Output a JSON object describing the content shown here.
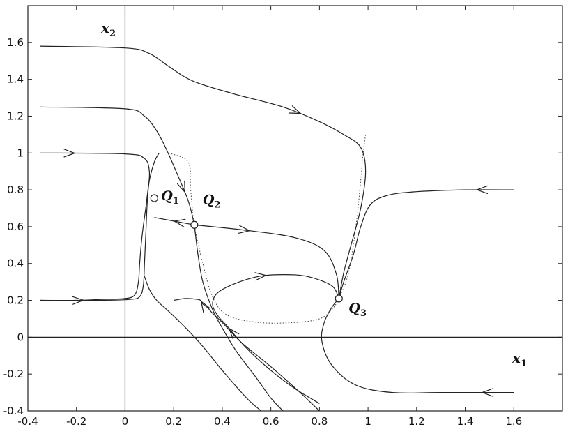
{
  "chart_data": {
    "type": "line",
    "title": "",
    "xlabel": "x1",
    "ylabel": "x2",
    "xlabel_parts": {
      "base": "x",
      "sub": "1"
    },
    "ylabel_parts": {
      "base": "x",
      "sub": "2"
    },
    "xlim": [
      -0.4,
      1.8
    ],
    "ylim": [
      -0.4,
      1.8
    ],
    "xticks": [
      -0.4,
      -0.2,
      0,
      0.2,
      0.4,
      0.6,
      0.8,
      1,
      1.2,
      1.4,
      1.6
    ],
    "yticks": [
      -0.4,
      -0.2,
      0,
      0.2,
      0.4,
      0.6,
      0.8,
      1,
      1.2,
      1.4,
      1.6
    ],
    "xtick_labels": [
      "-0.4",
      "-0.2",
      "0",
      "0.2",
      "0.4",
      "0.6",
      "0.8",
      "1",
      "1.2",
      "1.4",
      "1.6"
    ],
    "ytick_labels": [
      "-0.4",
      "-0.2",
      "0",
      "0.2",
      "0.4",
      "0.6",
      "0.8",
      "1",
      "1.2",
      "1.4",
      "1.6"
    ],
    "grid": false,
    "equilibria": [
      {
        "label": "Q",
        "sub": "1",
        "x": 0.12,
        "y": 0.755
      },
      {
        "label": "Q",
        "sub": "2",
        "x": 0.285,
        "y": 0.61
      },
      {
        "label": "Q",
        "sub": "3",
        "x": 0.88,
        "y": 0.21
      }
    ],
    "trajectories": [
      {
        "points": [
          [
            -0.35,
            1.58
          ],
          [
            0.0,
            1.57
          ],
          [
            0.1,
            1.54
          ],
          [
            0.18,
            1.47
          ],
          [
            0.28,
            1.39
          ],
          [
            0.45,
            1.32
          ],
          [
            0.65,
            1.25
          ],
          [
            0.8,
            1.17
          ],
          [
            0.9,
            1.1
          ],
          [
            0.97,
            1.03
          ],
          [
            0.99,
            0.9
          ],
          [
            0.97,
            0.7
          ],
          [
            0.93,
            0.5
          ],
          [
            0.9,
            0.35
          ],
          [
            0.88,
            0.21
          ]
        ],
        "arrows": [
          0.55
        ]
      },
      {
        "points": [
          [
            -0.35,
            1.25
          ],
          [
            0.0,
            1.24
          ],
          [
            0.08,
            1.2
          ],
          [
            0.13,
            1.12
          ],
          [
            0.17,
            1.02
          ],
          [
            0.21,
            0.9
          ],
          [
            0.26,
            0.74
          ],
          [
            0.285,
            0.61
          ]
        ],
        "arrows": [
          0.85
        ]
      },
      {
        "points": [
          [
            -0.35,
            1.0
          ],
          [
            0.0,
            0.995
          ],
          [
            0.08,
            0.97
          ],
          [
            0.1,
            0.9
          ],
          [
            0.095,
            0.8
          ],
          [
            0.09,
            0.7
          ],
          [
            0.085,
            0.55
          ],
          [
            0.08,
            0.4
          ],
          [
            0.075,
            0.28
          ],
          [
            0.06,
            0.22
          ],
          [
            0.02,
            0.205
          ],
          [
            -0.1,
            0.2
          ],
          [
            -0.35,
            0.2
          ]
        ],
        "arrows": [
          0.1
        ]
      },
      {
        "points": [
          [
            -0.35,
            0.2
          ],
          [
            -0.2,
            0.2
          ],
          [
            -0.1,
            0.205
          ],
          [
            0.0,
            0.21
          ],
          [
            0.04,
            0.23
          ],
          [
            0.055,
            0.3
          ],
          [
            0.06,
            0.4
          ],
          [
            0.07,
            0.55
          ],
          [
            0.085,
            0.7
          ],
          [
            0.1,
            0.85
          ],
          [
            0.12,
            0.95
          ],
          [
            0.14,
            1.0
          ]
        ],
        "arrows": [
          0.18
        ]
      },
      {
        "points": [
          [
            1.6,
            0.8
          ],
          [
            1.4,
            0.8
          ],
          [
            1.2,
            0.79
          ],
          [
            1.08,
            0.77
          ],
          [
            1.01,
            0.72
          ],
          [
            0.97,
            0.6
          ],
          [
            0.94,
            0.45
          ],
          [
            0.9,
            0.3
          ],
          [
            0.88,
            0.21
          ]
        ],
        "arrows": [
          0.15
        ]
      },
      {
        "points": [
          [
            0.285,
            0.61
          ],
          [
            0.12,
            0.65
          ]
        ],
        "arrows": [
          0.5
        ]
      },
      {
        "points": [
          [
            0.285,
            0.61
          ],
          [
            0.5,
            0.58
          ],
          [
            0.7,
            0.54
          ],
          [
            0.82,
            0.47
          ],
          [
            0.87,
            0.34
          ],
          [
            0.88,
            0.21
          ]
        ],
        "arrows": [
          0.3
        ]
      },
      {
        "points": [
          [
            0.08,
            0.33
          ],
          [
            0.1,
            0.26
          ],
          [
            0.13,
            0.2
          ],
          [
            0.18,
            0.14
          ],
          [
            0.25,
            0.05
          ],
          [
            0.32,
            -0.05
          ],
          [
            0.4,
            -0.18
          ],
          [
            0.5,
            -0.33
          ],
          [
            0.56,
            -0.4
          ]
        ],
        "arrows": []
      },
      {
        "points": [
          [
            0.285,
            0.61
          ],
          [
            0.3,
            0.45
          ],
          [
            0.32,
            0.3
          ],
          [
            0.36,
            0.15
          ],
          [
            0.4,
            0.05
          ],
          [
            0.46,
            -0.08
          ],
          [
            0.54,
            -0.22
          ],
          [
            0.6,
            -0.33
          ],
          [
            0.65,
            -0.4
          ]
        ],
        "arrows": []
      },
      {
        "points": [
          [
            0.8,
            -0.4
          ],
          [
            0.72,
            -0.3
          ],
          [
            0.6,
            -0.16
          ],
          [
            0.48,
            -0.03
          ],
          [
            0.4,
            0.08
          ],
          [
            0.36,
            0.13
          ],
          [
            0.34,
            0.16
          ],
          [
            0.32,
            0.18
          ],
          [
            0.31,
            0.2
          ],
          [
            0.3,
            0.205
          ],
          [
            0.25,
            0.21
          ],
          [
            0.2,
            0.2
          ]
        ],
        "arrows": [
          0.85
        ]
      },
      {
        "points": [
          [
            0.8,
            -0.36
          ],
          [
            0.7,
            -0.28
          ],
          [
            0.6,
            -0.18
          ],
          [
            0.5,
            -0.06
          ],
          [
            0.42,
            0.06
          ],
          [
            0.38,
            0.12
          ],
          [
            0.36,
            0.18
          ],
          [
            0.38,
            0.24
          ],
          [
            0.45,
            0.29
          ],
          [
            0.55,
            0.33
          ],
          [
            0.65,
            0.34
          ],
          [
            0.75,
            0.33
          ],
          [
            0.85,
            0.28
          ],
          [
            0.88,
            0.21
          ]
        ],
        "arrows": [
          0.4,
          0.72
        ]
      },
      {
        "points": [
          [
            1.6,
            -0.3
          ],
          [
            1.3,
            -0.3
          ],
          [
            1.1,
            -0.3
          ],
          [
            0.95,
            -0.26
          ],
          [
            0.85,
            -0.15
          ],
          [
            0.81,
            -0.02
          ],
          [
            0.82,
            0.08
          ],
          [
            0.85,
            0.16
          ],
          [
            0.88,
            0.21
          ]
        ],
        "arrows": [
          0.12
        ]
      }
    ],
    "separatrix": [
      [
        0.18,
        1.0
      ],
      [
        0.26,
        0.95
      ],
      [
        0.27,
        0.8
      ],
      [
        0.285,
        0.61
      ],
      [
        0.32,
        0.4
      ],
      [
        0.36,
        0.22
      ],
      [
        0.42,
        0.12
      ],
      [
        0.55,
        0.08
      ],
      [
        0.7,
        0.08
      ],
      [
        0.8,
        0.1
      ],
      [
        0.85,
        0.15
      ],
      [
        0.88,
        0.21
      ],
      [
        0.92,
        0.35
      ],
      [
        0.95,
        0.6
      ],
      [
        0.97,
        0.85
      ],
      [
        0.98,
        1.0
      ],
      [
        0.99,
        1.1
      ]
    ]
  }
}
